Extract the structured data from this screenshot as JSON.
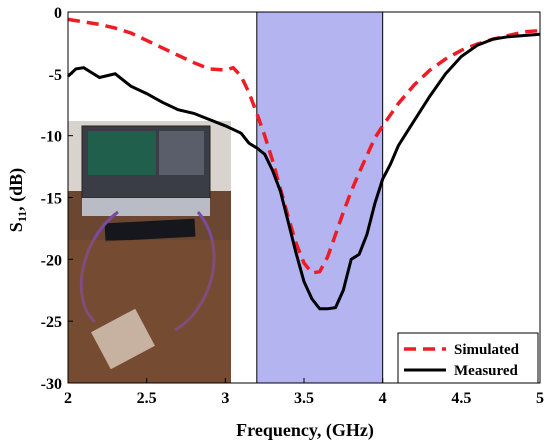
{
  "chart_data": {
    "type": "line",
    "xlabel": "Frequency, (GHz)",
    "ylabel": {
      "main": "S",
      "sub": "11",
      "rest": ", (dB)"
    },
    "xlim": [
      2,
      5
    ],
    "ylim": [
      -30,
      0
    ],
    "xticks": [
      "2",
      "2.5",
      "3",
      "3.5",
      "4",
      "4.5",
      "5"
    ],
    "yticks": [
      "0",
      "-5",
      "-10",
      "-15",
      "-20",
      "-25",
      "-30"
    ],
    "grid": false,
    "legend_position": "bottom-right",
    "highlight_band": {
      "x_start": 3.2,
      "x_end": 4.0,
      "color": "#b4b4f0"
    },
    "inset_photo": {
      "description_position": "left-lower",
      "depicts": "vector network analyzer measurement setup"
    },
    "series": [
      {
        "name": "Simulated",
        "style": "dashed",
        "color": "#ee1c24",
        "x": [
          2.0,
          2.1,
          2.2,
          2.3,
          2.4,
          2.5,
          2.6,
          2.7,
          2.8,
          2.9,
          3.0,
          3.05,
          3.1,
          3.15,
          3.2,
          3.25,
          3.3,
          3.35,
          3.4,
          3.45,
          3.5,
          3.55,
          3.6,
          3.65,
          3.7,
          3.75,
          3.8,
          3.85,
          3.9,
          3.95,
          4.0,
          4.1,
          4.2,
          4.3,
          4.4,
          4.5,
          4.6,
          4.7,
          4.8,
          4.9,
          5.0
        ],
        "y": [
          -0.6,
          -0.8,
          -1.0,
          -1.3,
          -1.7,
          -2.3,
          -2.9,
          -3.5,
          -4.1,
          -4.6,
          -4.7,
          -4.5,
          -5.2,
          -6.5,
          -8.2,
          -10.0,
          -12.0,
          -14.3,
          -16.6,
          -18.7,
          -20.3,
          -21.1,
          -21.0,
          -19.8,
          -18.0,
          -16.2,
          -14.5,
          -13.0,
          -11.6,
          -10.2,
          -9.2,
          -7.4,
          -5.9,
          -4.7,
          -3.8,
          -3.1,
          -2.6,
          -2.2,
          -1.9,
          -1.6,
          -1.5
        ]
      },
      {
        "name": "Measured",
        "style": "solid",
        "color": "#000000",
        "x": [
          2.0,
          2.05,
          2.1,
          2.15,
          2.2,
          2.3,
          2.4,
          2.5,
          2.6,
          2.7,
          2.8,
          2.9,
          3.0,
          3.1,
          3.15,
          3.2,
          3.25,
          3.3,
          3.35,
          3.4,
          3.45,
          3.5,
          3.55,
          3.6,
          3.65,
          3.7,
          3.75,
          3.8,
          3.85,
          3.9,
          3.95,
          4.0,
          4.05,
          4.1,
          4.2,
          4.3,
          4.4,
          4.5,
          4.6,
          4.7,
          4.8,
          4.9,
          5.0
        ],
        "y": [
          -5.2,
          -4.6,
          -4.5,
          -4.9,
          -5.3,
          -5.0,
          -6.0,
          -6.6,
          -7.3,
          -7.9,
          -8.2,
          -8.7,
          -9.2,
          -9.8,
          -10.6,
          -11.0,
          -11.5,
          -12.8,
          -14.5,
          -17.0,
          -19.5,
          -21.8,
          -23.2,
          -24.0,
          -24.0,
          -23.9,
          -22.5,
          -20.0,
          -19.6,
          -18.0,
          -15.5,
          -13.5,
          -12.3,
          -10.8,
          -8.8,
          -6.8,
          -5.0,
          -3.6,
          -2.7,
          -2.2,
          -2.0,
          -1.9,
          -1.8
        ]
      }
    ]
  }
}
